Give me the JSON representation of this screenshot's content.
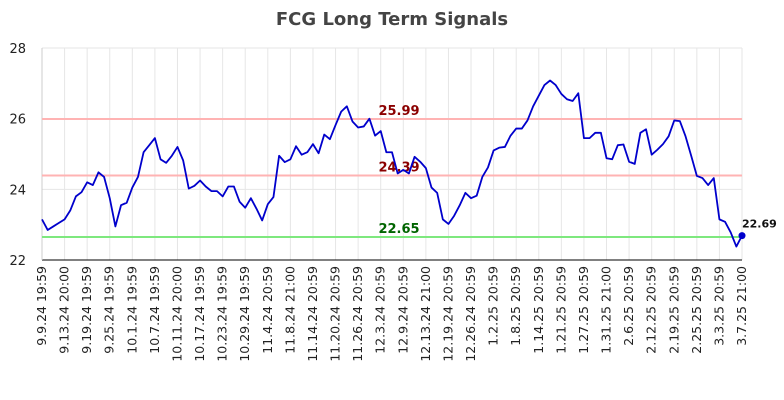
{
  "chart_data": {
    "type": "line",
    "title": "FCG Long Term Signals",
    "xlabel": "",
    "ylabel": "",
    "ylim": [
      22,
      28
    ],
    "yticks": [
      "22",
      "24",
      "26",
      "28"
    ],
    "grid": true,
    "x_tick_labels": [
      "9.9.24 19:59",
      "9.13.24 20:00",
      "9.19.24 19:59",
      "9.25.24 19:59",
      "10.1.24 19:59",
      "10.7.24 19:59",
      "10.11.24 20:00",
      "10.17.24 19:59",
      "10.23.24 19:59",
      "10.29.24 19:59",
      "11.4.24 20:59",
      "11.8.24 21:00",
      "11.14.24 20:59",
      "11.20.24 20:59",
      "11.26.24 20:59",
      "12.3.24 20:59",
      "12.9.24 20:59",
      "12.13.24 21:00",
      "12.19.24 20:59",
      "12.26.24 20:59",
      "1.2.25 20:59",
      "1.8.25 20:59",
      "1.14.25 20:59",
      "1.21.25 20:59",
      "1.27.25 20:59",
      "1.31.25 21:00",
      "2.6.25 20:59",
      "2.12.25 20:59",
      "2.19.25 20:59",
      "2.25.25 20:59",
      "3.3.25 20:59",
      "3.7.25 21:00"
    ],
    "series": [
      {
        "values": [
          23.15,
          22.85,
          22.95,
          23.05,
          23.15,
          23.4,
          23.8,
          23.92,
          24.2,
          24.12,
          24.48,
          24.35,
          23.75,
          22.95,
          23.55,
          23.62,
          24.05,
          24.35,
          25.05,
          25.25,
          25.45,
          24.85,
          24.75,
          24.95,
          25.2,
          24.82,
          24.02,
          24.1,
          24.25,
          24.08,
          23.95,
          23.95,
          23.8,
          24.08,
          24.08,
          23.65,
          23.48,
          23.75,
          23.45,
          23.12,
          23.58,
          23.78,
          24.95,
          24.77,
          24.85,
          25.22,
          24.98,
          25.05,
          25.28,
          25.02,
          25.55,
          25.42,
          25.82,
          26.2,
          26.35,
          25.92,
          25.75,
          25.78,
          26.0,
          25.52,
          25.65,
          25.05,
          25.05,
          24.45,
          24.55,
          24.45,
          24.92,
          24.78,
          24.6,
          24.05,
          23.9,
          23.15,
          23.02,
          23.25,
          23.55,
          23.9,
          23.75,
          23.82,
          24.35,
          24.62,
          25.1,
          25.18,
          25.2,
          25.52,
          25.72,
          25.72,
          25.95,
          26.35,
          26.65,
          26.95,
          27.08,
          26.95,
          26.7,
          26.55,
          26.5,
          26.72,
          25.45,
          25.45,
          25.6,
          25.6,
          24.88,
          24.85,
          25.25,
          25.27,
          24.78,
          24.72,
          25.6,
          25.7,
          24.98,
          25.12,
          25.28,
          25.5,
          25.95,
          25.93,
          25.5,
          24.95,
          24.38,
          24.32,
          24.12,
          24.32,
          23.15,
          23.08,
          22.78,
          22.38,
          22.69
        ]
      }
    ],
    "colors": {
      "line": "#0000cc",
      "upper": "#ffb3b3",
      "lower": "#7ee87e",
      "upper_text": "#8b0000",
      "lower_text": "#006400",
      "grid": "#e6e6e6"
    },
    "hlines": [
      {
        "value": 25.99,
        "label": "25.99",
        "color": "#ffb3b3",
        "text_color": "#8b0000"
      },
      {
        "value": 24.39,
        "label": "24.39",
        "color": "#ffb3b3",
        "text_color": "#8b0000"
      },
      {
        "value": 22.65,
        "label": "22.65",
        "color": "#7ee87e",
        "text_color": "#006400"
      }
    ],
    "last_value_label": "22.69"
  }
}
